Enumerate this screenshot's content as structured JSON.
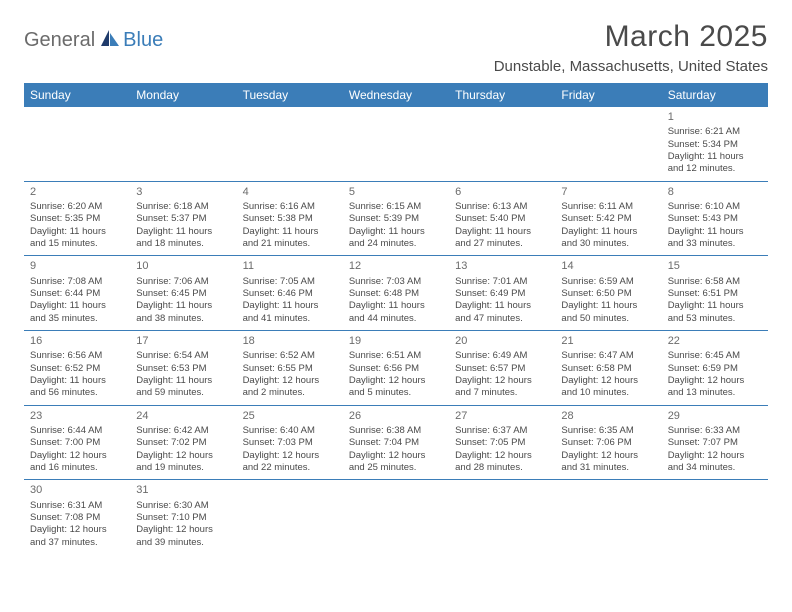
{
  "logo": {
    "text1": "General",
    "text2": "Blue"
  },
  "header": {
    "title": "March 2025",
    "location": "Dunstable, Massachusetts, United States"
  },
  "colors": {
    "header_bg": "#3b7db8",
    "header_text": "#ffffff",
    "border": "#3b7db8",
    "body_text": "#4a4a4a",
    "daynum": "#6b6b6b",
    "logo_gray": "#6b6b6b",
    "logo_blue": "#3b7db8",
    "page_bg": "#ffffff"
  },
  "weekdays": [
    "Sunday",
    "Monday",
    "Tuesday",
    "Wednesday",
    "Thursday",
    "Friday",
    "Saturday"
  ],
  "weeks": [
    [
      null,
      null,
      null,
      null,
      null,
      null,
      {
        "n": "1",
        "sr": "Sunrise: 6:21 AM",
        "ss": "Sunset: 5:34 PM",
        "dl": "Daylight: 11 hours and 12 minutes."
      }
    ],
    [
      {
        "n": "2",
        "sr": "Sunrise: 6:20 AM",
        "ss": "Sunset: 5:35 PM",
        "dl": "Daylight: 11 hours and 15 minutes."
      },
      {
        "n": "3",
        "sr": "Sunrise: 6:18 AM",
        "ss": "Sunset: 5:37 PM",
        "dl": "Daylight: 11 hours and 18 minutes."
      },
      {
        "n": "4",
        "sr": "Sunrise: 6:16 AM",
        "ss": "Sunset: 5:38 PM",
        "dl": "Daylight: 11 hours and 21 minutes."
      },
      {
        "n": "5",
        "sr": "Sunrise: 6:15 AM",
        "ss": "Sunset: 5:39 PM",
        "dl": "Daylight: 11 hours and 24 minutes."
      },
      {
        "n": "6",
        "sr": "Sunrise: 6:13 AM",
        "ss": "Sunset: 5:40 PM",
        "dl": "Daylight: 11 hours and 27 minutes."
      },
      {
        "n": "7",
        "sr": "Sunrise: 6:11 AM",
        "ss": "Sunset: 5:42 PM",
        "dl": "Daylight: 11 hours and 30 minutes."
      },
      {
        "n": "8",
        "sr": "Sunrise: 6:10 AM",
        "ss": "Sunset: 5:43 PM",
        "dl": "Daylight: 11 hours and 33 minutes."
      }
    ],
    [
      {
        "n": "9",
        "sr": "Sunrise: 7:08 AM",
        "ss": "Sunset: 6:44 PM",
        "dl": "Daylight: 11 hours and 35 minutes."
      },
      {
        "n": "10",
        "sr": "Sunrise: 7:06 AM",
        "ss": "Sunset: 6:45 PM",
        "dl": "Daylight: 11 hours and 38 minutes."
      },
      {
        "n": "11",
        "sr": "Sunrise: 7:05 AM",
        "ss": "Sunset: 6:46 PM",
        "dl": "Daylight: 11 hours and 41 minutes."
      },
      {
        "n": "12",
        "sr": "Sunrise: 7:03 AM",
        "ss": "Sunset: 6:48 PM",
        "dl": "Daylight: 11 hours and 44 minutes."
      },
      {
        "n": "13",
        "sr": "Sunrise: 7:01 AM",
        "ss": "Sunset: 6:49 PM",
        "dl": "Daylight: 11 hours and 47 minutes."
      },
      {
        "n": "14",
        "sr": "Sunrise: 6:59 AM",
        "ss": "Sunset: 6:50 PM",
        "dl": "Daylight: 11 hours and 50 minutes."
      },
      {
        "n": "15",
        "sr": "Sunrise: 6:58 AM",
        "ss": "Sunset: 6:51 PM",
        "dl": "Daylight: 11 hours and 53 minutes."
      }
    ],
    [
      {
        "n": "16",
        "sr": "Sunrise: 6:56 AM",
        "ss": "Sunset: 6:52 PM",
        "dl": "Daylight: 11 hours and 56 minutes."
      },
      {
        "n": "17",
        "sr": "Sunrise: 6:54 AM",
        "ss": "Sunset: 6:53 PM",
        "dl": "Daylight: 11 hours and 59 minutes."
      },
      {
        "n": "18",
        "sr": "Sunrise: 6:52 AM",
        "ss": "Sunset: 6:55 PM",
        "dl": "Daylight: 12 hours and 2 minutes."
      },
      {
        "n": "19",
        "sr": "Sunrise: 6:51 AM",
        "ss": "Sunset: 6:56 PM",
        "dl": "Daylight: 12 hours and 5 minutes."
      },
      {
        "n": "20",
        "sr": "Sunrise: 6:49 AM",
        "ss": "Sunset: 6:57 PM",
        "dl": "Daylight: 12 hours and 7 minutes."
      },
      {
        "n": "21",
        "sr": "Sunrise: 6:47 AM",
        "ss": "Sunset: 6:58 PM",
        "dl": "Daylight: 12 hours and 10 minutes."
      },
      {
        "n": "22",
        "sr": "Sunrise: 6:45 AM",
        "ss": "Sunset: 6:59 PM",
        "dl": "Daylight: 12 hours and 13 minutes."
      }
    ],
    [
      {
        "n": "23",
        "sr": "Sunrise: 6:44 AM",
        "ss": "Sunset: 7:00 PM",
        "dl": "Daylight: 12 hours and 16 minutes."
      },
      {
        "n": "24",
        "sr": "Sunrise: 6:42 AM",
        "ss": "Sunset: 7:02 PM",
        "dl": "Daylight: 12 hours and 19 minutes."
      },
      {
        "n": "25",
        "sr": "Sunrise: 6:40 AM",
        "ss": "Sunset: 7:03 PM",
        "dl": "Daylight: 12 hours and 22 minutes."
      },
      {
        "n": "26",
        "sr": "Sunrise: 6:38 AM",
        "ss": "Sunset: 7:04 PM",
        "dl": "Daylight: 12 hours and 25 minutes."
      },
      {
        "n": "27",
        "sr": "Sunrise: 6:37 AM",
        "ss": "Sunset: 7:05 PM",
        "dl": "Daylight: 12 hours and 28 minutes."
      },
      {
        "n": "28",
        "sr": "Sunrise: 6:35 AM",
        "ss": "Sunset: 7:06 PM",
        "dl": "Daylight: 12 hours and 31 minutes."
      },
      {
        "n": "29",
        "sr": "Sunrise: 6:33 AM",
        "ss": "Sunset: 7:07 PM",
        "dl": "Daylight: 12 hours and 34 minutes."
      }
    ],
    [
      {
        "n": "30",
        "sr": "Sunrise: 6:31 AM",
        "ss": "Sunset: 7:08 PM",
        "dl": "Daylight: 12 hours and 37 minutes."
      },
      {
        "n": "31",
        "sr": "Sunrise: 6:30 AM",
        "ss": "Sunset: 7:10 PM",
        "dl": "Daylight: 12 hours and 39 minutes."
      },
      null,
      null,
      null,
      null,
      null
    ]
  ]
}
